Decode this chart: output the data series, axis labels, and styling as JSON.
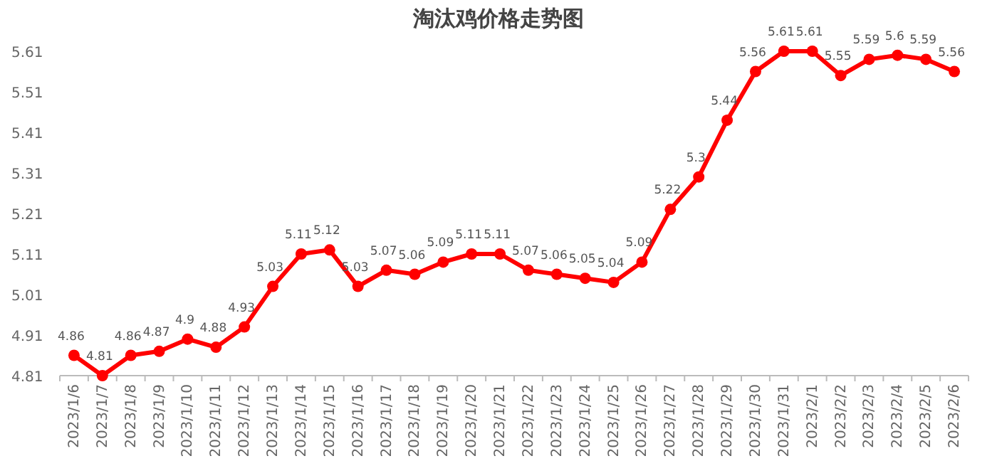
{
  "chart_data": {
    "type": "line",
    "title": "淘汰鸡价格走势图",
    "categories": [
      "2023/1/6",
      "2023/1/7",
      "2023/1/8",
      "2023/1/9",
      "2023/1/10",
      "2023/1/11",
      "2023/1/12",
      "2023/1/13",
      "2023/1/14",
      "2023/1/15",
      "2023/1/16",
      "2023/1/17",
      "2023/1/18",
      "2023/1/19",
      "2023/1/20",
      "2023/1/21",
      "2023/1/22",
      "2023/1/23",
      "2023/1/24",
      "2023/1/25",
      "2023/1/26",
      "2023/1/27",
      "2023/1/28",
      "2023/1/29",
      "2023/1/30",
      "2023/1/31",
      "2023/2/1",
      "2023/2/2",
      "2023/2/3",
      "2023/2/4",
      "2023/2/5",
      "2023/2/6"
    ],
    "series": [
      {
        "color": "#ff0000",
        "values": [
          4.86,
          4.81,
          4.86,
          4.87,
          4.9,
          4.88,
          4.93,
          5.03,
          5.11,
          5.12,
          5.03,
          5.07,
          5.06,
          5.09,
          5.11,
          5.11,
          5.07,
          5.06,
          5.05,
          5.04,
          5.09,
          5.22,
          5.3,
          5.44,
          5.56,
          5.61,
          5.61,
          5.55,
          5.59,
          5.6,
          5.59,
          5.56
        ]
      }
    ],
    "ylim": [
      4.81,
      5.61
    ],
    "yticks": [
      4.81,
      4.91,
      5.01,
      5.11,
      5.21,
      5.31,
      5.41,
      5.51,
      5.61
    ],
    "data_labels": true,
    "grid": false,
    "marker": "circle",
    "line_style": "solid"
  }
}
